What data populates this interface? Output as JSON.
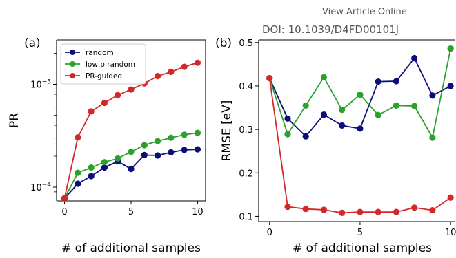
{
  "header": {
    "link": "View Article Online",
    "doi": "DOI: 10.1039/D4FD00101J"
  },
  "chart_data": [
    {
      "panel": "(a)",
      "type": "line",
      "xlabel": "# of additional samples",
      "ylabel": "PR",
      "yscale": "log",
      "xlim": [
        -0.6,
        10.6
      ],
      "ylim": [
        7.35e-05,
        0.0027
      ],
      "xticks": [
        0,
        5,
        10
      ],
      "yticks": [
        {
          "value": 0.0001,
          "base": "10",
          "exp": "−4"
        },
        {
          "value": 0.001,
          "base": "10",
          "exp": "−3"
        }
      ],
      "grid": false,
      "legend": "top-left",
      "x": [
        0,
        1,
        2,
        3,
        4,
        5,
        6,
        7,
        8,
        9,
        10
      ],
      "series": [
        {
          "name": "random",
          "color": "#0d0d7a",
          "values": [
            7.8e-05,
            0.000108,
            0.000128,
            0.000155,
            0.000178,
            0.00015,
            0.000205,
            0.000203,
            0.000218,
            0.00023,
            0.000233
          ]
        },
        {
          "name": "low ρ random",
          "color": "#2ca02c",
          "values": [
            7.8e-05,
            0.000138,
            0.000155,
            0.000175,
            0.00019,
            0.00022,
            0.000256,
            0.00028,
            0.000302,
            0.000323,
            0.000337
          ]
        },
        {
          "name": "PR-guided",
          "color": "#d62728",
          "values": [
            7.8e-05,
            0.000305,
            0.000545,
            0.00066,
            0.000785,
            0.00089,
            0.00102,
            0.0012,
            0.00132,
            0.00148,
            0.00162
          ]
        }
      ]
    },
    {
      "panel": "(b)",
      "type": "line",
      "xlabel": "# of additional samples",
      "ylabel": "RMSE [eV]",
      "yscale": "linear",
      "xlim": [
        -0.6,
        10.3
      ],
      "ylim": [
        0.088,
        0.506
      ],
      "xticks": [
        0,
        5,
        10
      ],
      "yticks": [
        0.1,
        0.2,
        0.3,
        0.4,
        0.5
      ],
      "ytick_labels": [
        "0.1",
        "0.2",
        "0.3",
        "0.4",
        "0.5"
      ],
      "grid": false,
      "x": [
        0,
        1,
        2,
        3,
        4,
        5,
        6,
        7,
        8,
        9,
        10
      ],
      "series": [
        {
          "name": "random",
          "color": "#0d0d7a",
          "values": [
            0.418,
            0.325,
            0.284,
            0.334,
            0.309,
            0.302,
            0.41,
            0.411,
            0.464,
            0.378,
            0.4
          ]
        },
        {
          "name": "low ρ random",
          "color": "#2ca02c",
          "values": [
            0.418,
            0.289,
            0.355,
            0.42,
            0.345,
            0.38,
            0.333,
            0.355,
            0.354,
            0.281,
            0.486
          ]
        },
        {
          "name": "PR-guided",
          "color": "#d62728",
          "values": [
            0.418,
            0.122,
            0.117,
            0.115,
            0.108,
            0.11,
            0.11,
            0.11,
            0.12,
            0.114,
            0.143
          ]
        }
      ]
    }
  ]
}
